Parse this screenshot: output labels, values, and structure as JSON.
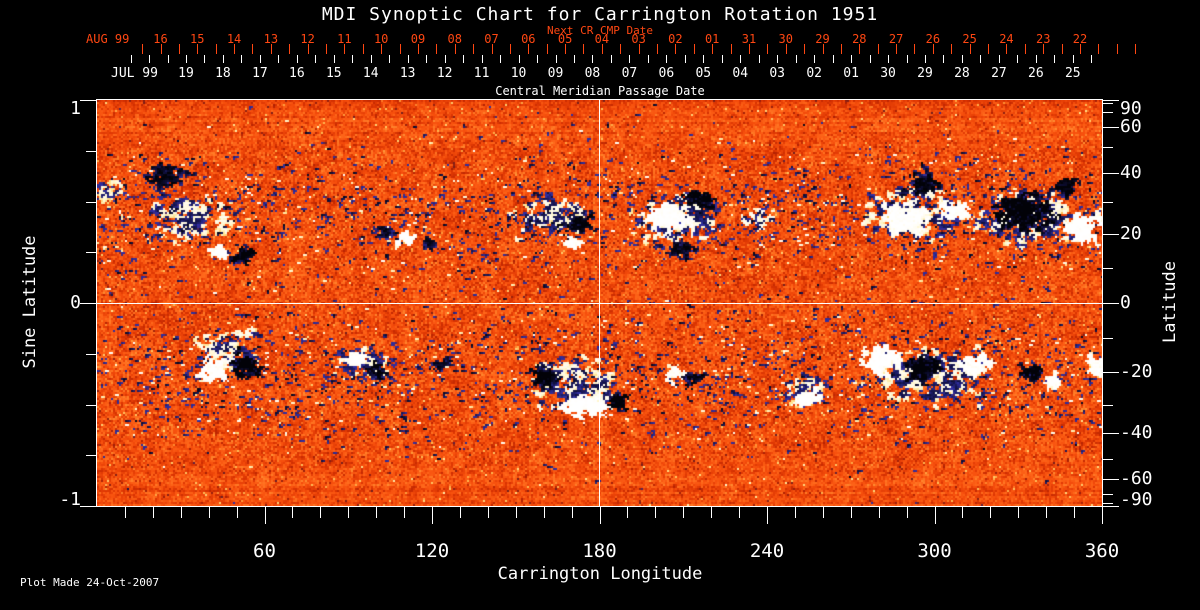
{
  "chart_data": {
    "type": "heatmap",
    "title": "MDI Synoptic Chart for Carrington Rotation 1951",
    "footer_note": "Plot Made 24-Oct-2007",
    "top_axes": {
      "next_cr": {
        "title": "Next CR CMP Date",
        "month_label": "AUG 99",
        "day_labels": [
          "16",
          "15",
          "14",
          "13",
          "12",
          "11",
          "10",
          "09",
          "08",
          "07",
          "06",
          "05",
          "04",
          "03",
          "02",
          "01",
          "31",
          "30",
          "29",
          "28",
          "27",
          "26",
          "25",
          "24",
          "23",
          "22"
        ],
        "color": "#ff4712"
      },
      "cmp": {
        "title": "Central Meridian Passage Date",
        "month_label": "JUL 99",
        "day_labels": [
          "19",
          "18",
          "17",
          "16",
          "15",
          "14",
          "13",
          "12",
          "11",
          "10",
          "09",
          "08",
          "07",
          "06",
          "05",
          "04",
          "03",
          "02",
          "01",
          "30",
          "29",
          "28",
          "27",
          "26",
          "25"
        ],
        "color": "#ffffff"
      }
    },
    "x_axis": {
      "title": "Carrington Longitude",
      "range": [
        0,
        360
      ],
      "labeled_ticks": [
        60,
        120,
        180,
        240,
        300,
        360
      ],
      "minor_tick_step_deg": 10
    },
    "y_axis_left": {
      "title": "Sine Latitude",
      "range": [
        -1,
        1
      ],
      "labeled_ticks": [
        1,
        0,
        -1
      ],
      "minor_ticks": [
        0.75,
        0.5,
        0.25,
        -0.25,
        -0.5,
        -0.75
      ]
    },
    "y_axis_right": {
      "title": "Latitude",
      "labeled_ticks": [
        90,
        60,
        40,
        20,
        0,
        -20,
        -40,
        -60,
        -90
      ],
      "minor_ticks": [
        80,
        70,
        50,
        30,
        10,
        -10,
        -30,
        -50,
        -70,
        -80
      ]
    },
    "grid_lines": {
      "longitude_deg": [
        180
      ],
      "sine_latitude": [
        0
      ],
      "color": "#ffffff"
    },
    "colormap": {
      "name": "mdi-magnetogram",
      "strong_negative": [
        "#020208",
        "#121246",
        "#2d2d9b"
      ],
      "neutral_background": [
        "#af2002",
        "#f64e0c",
        "#ff8e32"
      ],
      "strong_positive": [
        "#ffe28c",
        "#fff6cd",
        "#ffffff"
      ]
    },
    "crosshair": {
      "longitude_deg": 180,
      "sine_latitude": 0
    },
    "speckle_bands": [
      {
        "center_sine_lat": 0.44,
        "sigma": 0.17,
        "dark_density": 0.06,
        "light_density": 0.017
      },
      {
        "center_sine_lat": -0.36,
        "sigma": 0.17,
        "dark_density": 0.06,
        "light_density": 0.017
      }
    ],
    "active_regions": {
      "fields": [
        "longitude_deg",
        "sine_latitude",
        "width_px",
        "height_px",
        "polarity",
        "strength"
      ],
      "list": [
        [
          24,
          0.63,
          42,
          22,
          -1,
          0.75
        ],
        [
          33,
          0.43,
          85,
          48,
          0,
          0.38
        ],
        [
          43,
          0.26,
          17,
          14,
          1,
          0.95
        ],
        [
          52,
          0.24,
          20,
          16,
          -1,
          0.9
        ],
        [
          110,
          0.32,
          15,
          11,
          1,
          0.9
        ],
        [
          102,
          0.36,
          16,
          12,
          -1,
          0.7
        ],
        [
          119,
          0.3,
          14,
          10,
          -1,
          0.7
        ],
        [
          162,
          0.43,
          70,
          44,
          0,
          0.42
        ],
        [
          172,
          0.4,
          27,
          15,
          -1,
          0.85
        ],
        [
          169,
          0.3,
          13,
          9,
          1,
          0.85
        ],
        [
          204,
          0.43,
          42,
          28,
          1,
          0.9
        ],
        [
          216,
          0.51,
          28,
          18,
          -1,
          0.85
        ],
        [
          209,
          0.27,
          32,
          13,
          -1,
          0.8
        ],
        [
          207,
          0.42,
          90,
          52,
          0,
          0.4
        ],
        [
          236,
          0.43,
          32,
          22,
          0,
          0.45
        ],
        [
          289,
          0.43,
          46,
          30,
          1,
          0.9
        ],
        [
          295,
          0.6,
          36,
          20,
          -1,
          0.8
        ],
        [
          291,
          0.45,
          95,
          52,
          0,
          0.4
        ],
        [
          307,
          0.46,
          24,
          16,
          1,
          0.9
        ],
        [
          331,
          0.46,
          56,
          36,
          -1,
          0.97
        ],
        [
          346,
          0.58,
          26,
          16,
          -1,
          0.9
        ],
        [
          352,
          0.38,
          36,
          30,
          1,
          0.95
        ],
        [
          332,
          0.43,
          100,
          55,
          0,
          0.42
        ],
        [
          3,
          0.55,
          30,
          25,
          0,
          0.3
        ],
        [
          41,
          -0.32,
          26,
          20,
          1,
          0.95
        ],
        [
          53,
          -0.3,
          30,
          24,
          -1,
          0.95
        ],
        [
          46,
          -0.23,
          65,
          42,
          0,
          0.4
        ],
        [
          92,
          -0.27,
          20,
          13,
          1,
          0.85
        ],
        [
          100,
          -0.33,
          20,
          14,
          -1,
          0.8
        ],
        [
          96,
          -0.29,
          55,
          35,
          0,
          0.35
        ],
        [
          123,
          -0.3,
          15,
          10,
          -1,
          0.7
        ],
        [
          160,
          -0.36,
          28,
          22,
          -1,
          0.85
        ],
        [
          174,
          -0.5,
          44,
          28,
          1,
          0.97
        ],
        [
          186,
          -0.48,
          17,
          13,
          -1,
          0.95
        ],
        [
          171,
          -0.4,
          85,
          52,
          0,
          0.42
        ],
        [
          206,
          -0.34,
          17,
          11,
          1,
          0.8
        ],
        [
          213,
          -0.37,
          19,
          13,
          -1,
          0.75
        ],
        [
          254,
          -0.46,
          25,
          17,
          1,
          0.9
        ],
        [
          253,
          -0.42,
          45,
          32,
          0,
          0.35
        ],
        [
          280,
          -0.28,
          36,
          27,
          1,
          0.95
        ],
        [
          295,
          -0.31,
          38,
          27,
          -1,
          0.9
        ],
        [
          313,
          -0.3,
          31,
          22,
          1,
          0.9
        ],
        [
          297,
          -0.36,
          115,
          58,
          0,
          0.4
        ],
        [
          334,
          -0.33,
          23,
          15,
          -1,
          0.85
        ],
        [
          341,
          -0.38,
          15,
          11,
          1,
          0.8
        ],
        [
          357,
          -0.3,
          16,
          20,
          1,
          0.8
        ]
      ]
    },
    "seed": 1951
  }
}
